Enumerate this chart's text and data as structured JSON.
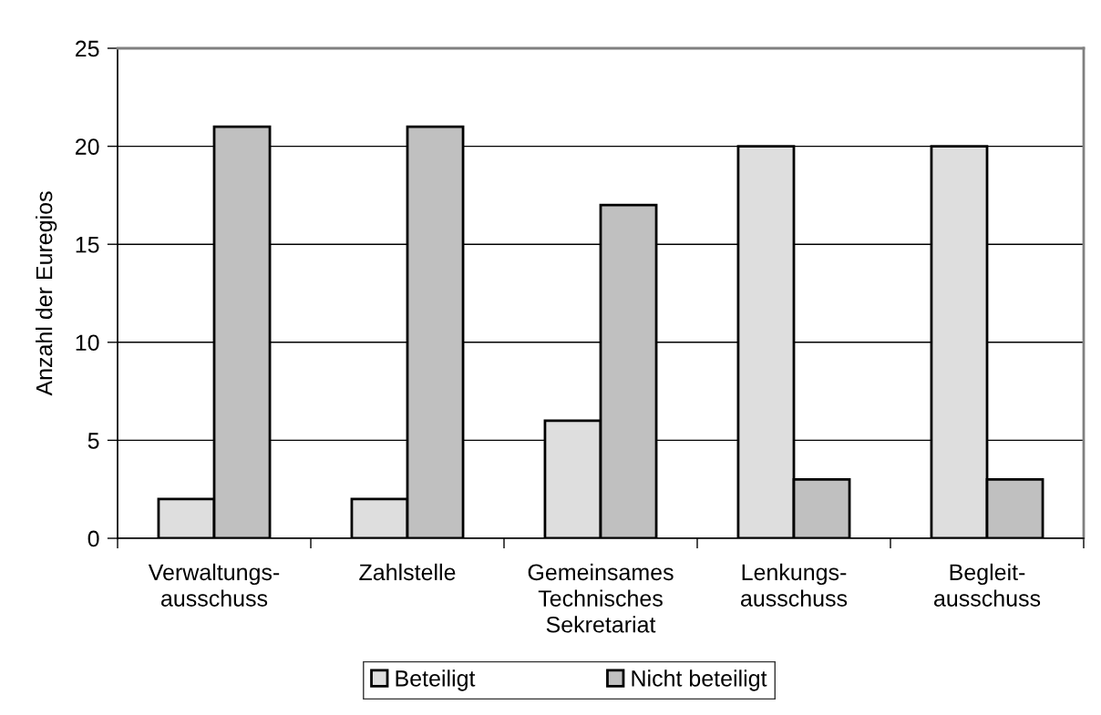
{
  "chart_data": {
    "type": "bar",
    "ylabel": "Anzahl der Euregios",
    "categories": [
      "Verwaltungs-\nausschuss",
      "Zahlstelle",
      "Gemeinsames\nTechnisches\nSekretariat",
      "Lenkungs-\nausschuss",
      "Begleit-\nausschuss"
    ],
    "series": [
      {
        "name": "Beteiligt",
        "color": "#dedede",
        "values": [
          2,
          2,
          6,
          20,
          20
        ]
      },
      {
        "name": "Nicht beteiligt",
        "color": "#c0c0c0",
        "values": [
          21,
          21,
          17,
          3,
          3
        ]
      }
    ],
    "ylim": [
      0,
      25
    ],
    "yticks": [
      0,
      5,
      10,
      15,
      20,
      25
    ],
    "grid": "y",
    "legend": "bottom"
  }
}
